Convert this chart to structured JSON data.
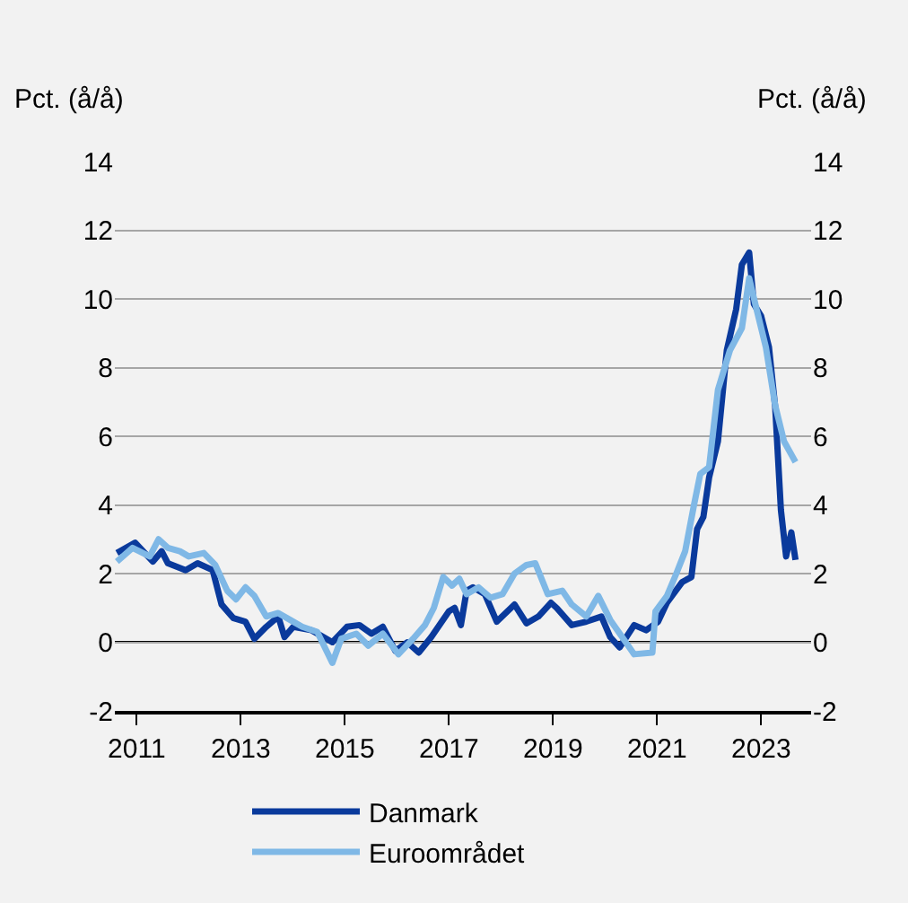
{
  "chart_data": {
    "type": "line",
    "ylabel": "Pct. (å/å)",
    "y2label": "Pct. (å/å)",
    "xlim": [
      2010.58,
      2023.96
    ],
    "xticks": [
      2011,
      2013,
      2015,
      2017,
      2019,
      2021,
      2023
    ],
    "ylim": [
      -2,
      14
    ],
    "yticks": [
      -2,
      0,
      2,
      4,
      6,
      8,
      10,
      12,
      14
    ],
    "y2lim": [
      -2,
      14
    ],
    "y2ticks": [
      -2,
      0,
      2,
      4,
      6,
      8,
      10,
      12,
      14
    ],
    "grid": "y",
    "legend": "bottom",
    "line_style": "solid",
    "marker": "none",
    "ref_lines": [
      {
        "axis": "y",
        "value": 0,
        "color": "#000000"
      }
    ],
    "series": [
      {
        "name": "Danmark",
        "color": "#0a3a9c",
        "x": [
          2010.62,
          2010.97,
          2011.31,
          2011.48,
          2011.6,
          2011.94,
          2012.17,
          2012.46,
          2012.63,
          2012.86,
          2013.09,
          2013.26,
          2013.49,
          2013.72,
          2013.84,
          2014.01,
          2014.36,
          2014.59,
          2014.76,
          2015.04,
          2015.28,
          2015.51,
          2015.73,
          2015.97,
          2016.2,
          2016.42,
          2016.66,
          2017.0,
          2017.11,
          2017.23,
          2017.34,
          2017.46,
          2017.69,
          2017.92,
          2018.26,
          2018.49,
          2018.72,
          2018.96,
          2019.07,
          2019.36,
          2019.64,
          2019.93,
          2020.1,
          2020.28,
          2020.56,
          2020.79,
          2021.02,
          2021.19,
          2021.48,
          2021.66,
          2021.77,
          2021.89,
          2022.0,
          2022.17,
          2022.34,
          2022.52,
          2022.63,
          2022.77,
          2022.86,
          2023.0,
          2023.15,
          2023.27,
          2023.38,
          2023.48,
          2023.58,
          2023.66
        ],
        "values": [
          2.6,
          2.9,
          2.35,
          2.65,
          2.3,
          2.1,
          2.3,
          2.1,
          1.1,
          0.7,
          0.6,
          0.1,
          0.45,
          0.75,
          0.15,
          0.45,
          0.35,
          0.15,
          0.0,
          0.45,
          0.5,
          0.25,
          0.45,
          -0.25,
          0.0,
          -0.3,
          0.15,
          0.9,
          1.0,
          0.5,
          1.5,
          1.6,
          1.4,
          0.6,
          1.1,
          0.55,
          0.75,
          1.15,
          1.0,
          0.5,
          0.6,
          0.75,
          0.15,
          -0.15,
          0.5,
          0.35,
          0.6,
          1.15,
          1.75,
          1.9,
          3.3,
          3.65,
          4.8,
          5.85,
          8.5,
          9.7,
          11.0,
          11.35,
          9.85,
          9.5,
          8.6,
          6.85,
          3.85,
          2.5,
          3.2,
          2.4
        ]
      },
      {
        "name": "Euroområdet",
        "color": "#7fb8e6",
        "x": [
          2010.62,
          2010.92,
          2011.25,
          2011.42,
          2011.6,
          2011.83,
          2012.0,
          2012.29,
          2012.51,
          2012.74,
          2012.91,
          2013.09,
          2013.26,
          2013.49,
          2013.72,
          2013.95,
          2014.18,
          2014.47,
          2014.76,
          2014.93,
          2015.22,
          2015.45,
          2015.73,
          2016.03,
          2016.31,
          2016.54,
          2016.71,
          2016.89,
          2017.06,
          2017.2,
          2017.34,
          2017.57,
          2017.8,
          2018.03,
          2018.26,
          2018.49,
          2018.66,
          2018.9,
          2019.18,
          2019.36,
          2019.64,
          2019.87,
          2020.1,
          2020.33,
          2020.56,
          2020.91,
          2020.97,
          2021.19,
          2021.37,
          2021.54,
          2021.71,
          2021.83,
          2022.0,
          2022.17,
          2022.4,
          2022.63,
          2022.77,
          2022.92,
          2023.09,
          2023.27,
          2023.44,
          2023.66
        ],
        "values": [
          2.35,
          2.75,
          2.5,
          3.0,
          2.75,
          2.65,
          2.5,
          2.6,
          2.25,
          1.5,
          1.25,
          1.6,
          1.35,
          0.75,
          0.85,
          0.65,
          0.45,
          0.3,
          -0.6,
          0.1,
          0.25,
          -0.1,
          0.25,
          -0.35,
          0.1,
          0.5,
          1.0,
          1.9,
          1.65,
          1.85,
          1.4,
          1.6,
          1.3,
          1.4,
          2.0,
          2.25,
          2.3,
          1.4,
          1.5,
          1.1,
          0.75,
          1.35,
          0.65,
          0.15,
          -0.35,
          -0.3,
          0.9,
          1.35,
          2.0,
          2.65,
          4.0,
          4.9,
          5.1,
          7.35,
          8.5,
          9.15,
          10.6,
          9.65,
          8.6,
          6.9,
          5.85,
          5.25
        ]
      }
    ]
  }
}
